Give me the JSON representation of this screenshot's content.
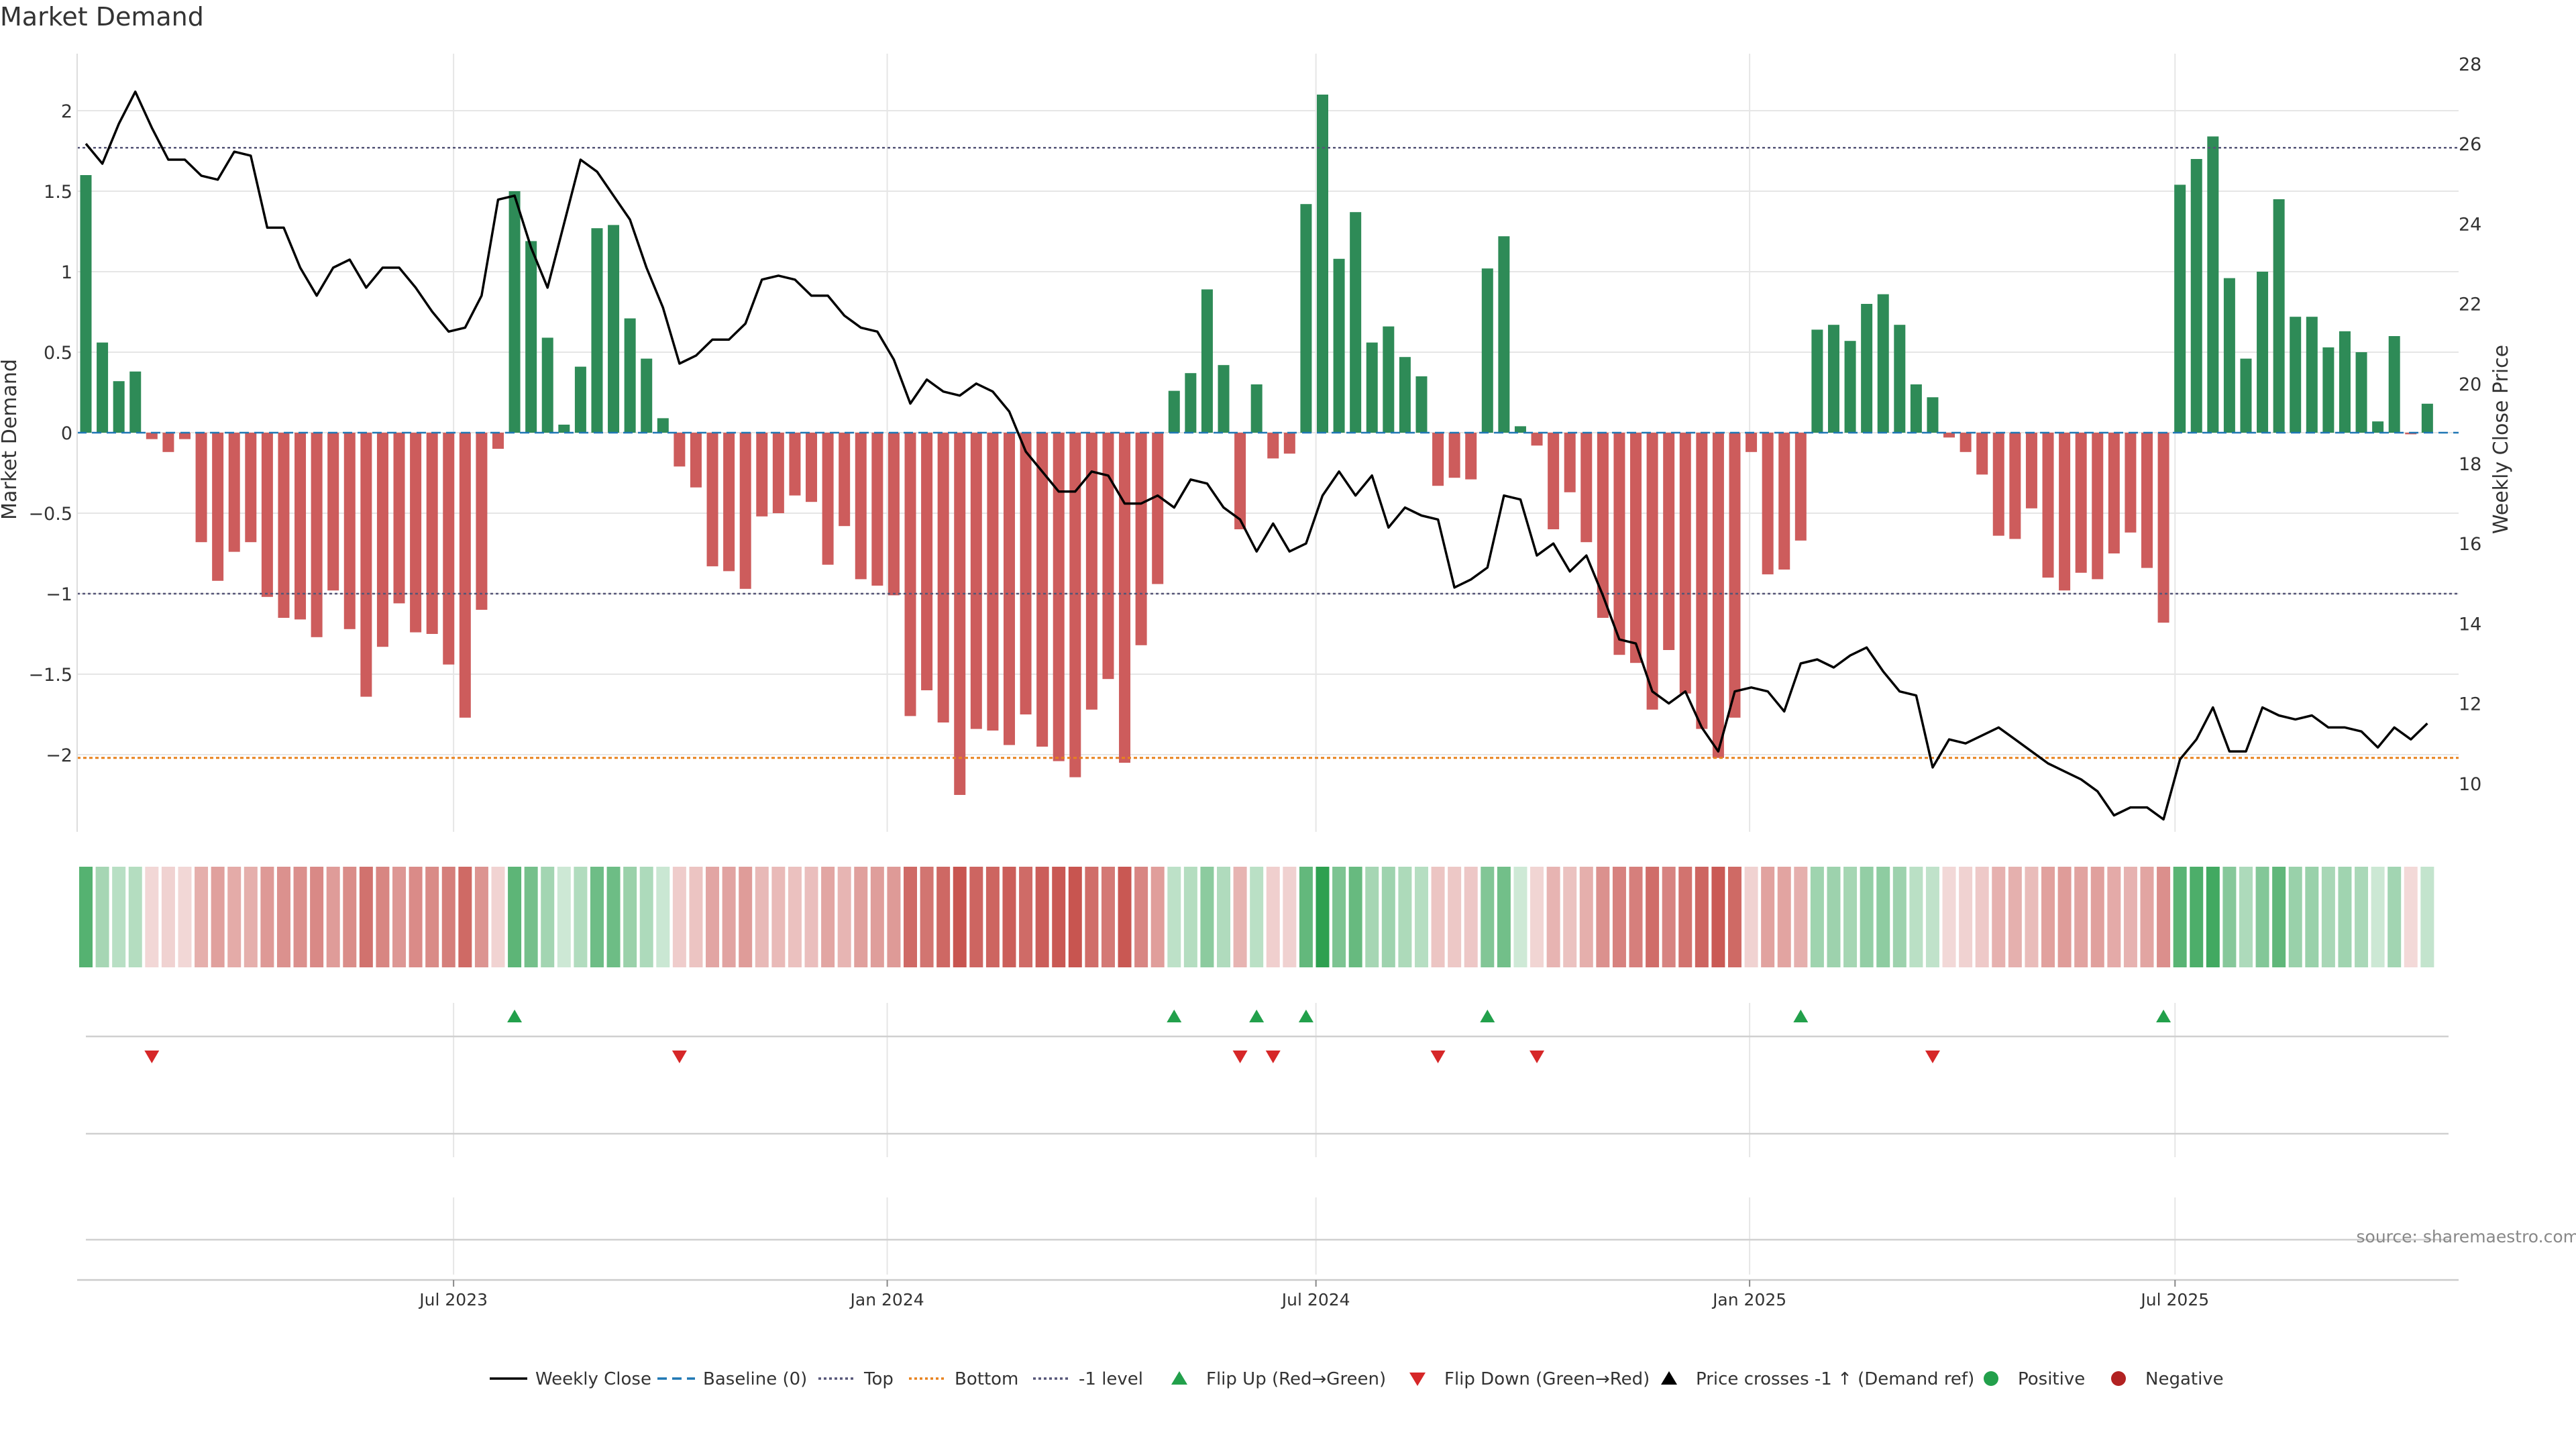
{
  "title": "Market Demand",
  "source": "source: sharemaestro.com",
  "colors": {
    "positive": "#2e8b57",
    "negative": "#cd5c5c",
    "price": "#000000",
    "top_line": "#555577",
    "bottom_line": "#e8821e",
    "baseline": "#1f77b4",
    "flip_up": "#22a04b",
    "flip_down": "#d62728",
    "grid": "#e6e6e6"
  },
  "legend": [
    {
      "label": "Weekly Close",
      "kind": "line-solid",
      "color": "#000000"
    },
    {
      "label": "Baseline (0)",
      "kind": "line-dashed",
      "color": "#1f77b4"
    },
    {
      "label": "Top",
      "kind": "line-dotted",
      "color": "#555577"
    },
    {
      "label": "Bottom",
      "kind": "line-dotted",
      "color": "#e8821e"
    },
    {
      "label": "-1 level",
      "kind": "line-dotted",
      "color": "#555577"
    },
    {
      "label": "Flip Up (Red→Green)",
      "kind": "triangle-up",
      "color": "#22a04b"
    },
    {
      "label": "Flip Down (Green→Red)",
      "kind": "triangle-down",
      "color": "#d62728"
    },
    {
      "label": "Price crosses -1 ↑ (Demand ref)",
      "kind": "triangle-up",
      "color": "#000000"
    },
    {
      "label": "Positive",
      "kind": "dot",
      "color": "#22a04b"
    },
    {
      "label": "Negative",
      "kind": "dot",
      "color": "#b22222"
    }
  ],
  "chart_data": {
    "type": "bar",
    "title": "Market Demand",
    "ylabel": "Market Demand",
    "y2label": "Weekly Close Price",
    "ylim": [
      -2.5,
      2.2
    ],
    "y2lim": [
      8.7,
      28.5
    ],
    "yticks": [
      "2",
      "1.5",
      "1",
      "0.5",
      "0",
      "−0.5",
      "−1",
      "−1.5",
      "−2"
    ],
    "ytick_values": [
      2,
      1.5,
      1,
      0.5,
      0,
      -0.5,
      -1,
      -1.5,
      -2
    ],
    "y2ticks": [
      "28",
      "26",
      "24",
      "22",
      "20",
      "18",
      "16",
      "14",
      "12",
      "10"
    ],
    "y2tick_values": [
      28,
      26,
      24,
      22,
      20,
      18,
      16,
      14,
      12,
      10
    ],
    "x_start": "2023-01-02",
    "x_step_weeks": 1,
    "xticks": [
      {
        "label": "Jul 2023",
        "week": 22.3
      },
      {
        "label": "Jan 2024",
        "week": 48.6
      },
      {
        "label": "Jul 2024",
        "week": 74.6
      },
      {
        "label": "Jan 2025",
        "week": 100.9
      },
      {
        "label": "Jul 2025",
        "week": 126.7
      }
    ],
    "reference_lines": {
      "top": 1.77,
      "minus_one": -1.0,
      "bottom": -2.02,
      "baseline": 0
    },
    "series": [
      {
        "name": "Market Demand",
        "values": [
          1.6,
          0.56,
          0.32,
          0.38,
          -0.04,
          -0.12,
          -0.04,
          -0.68,
          -0.92,
          -0.74,
          -0.68,
          -1.02,
          -1.15,
          -1.16,
          -1.27,
          -0.98,
          -1.22,
          -1.64,
          -1.33,
          -1.06,
          -1.24,
          -1.25,
          -1.44,
          -1.77,
          -1.1,
          -0.1,
          1.5,
          1.19,
          0.59,
          0.05,
          0.41,
          1.27,
          1.29,
          0.71,
          0.46,
          0.09,
          -0.21,
          -0.34,
          -0.83,
          -0.86,
          -0.97,
          -0.52,
          -0.5,
          -0.39,
          -0.43,
          -0.82,
          -0.58,
          -0.91,
          -0.95,
          -1.01,
          -1.76,
          -1.6,
          -1.8,
          -2.25,
          -1.84,
          -1.85,
          -1.94,
          -1.75,
          -1.95,
          -2.04,
          -2.14,
          -1.72,
          -1.53,
          -2.05,
          -1.32,
          -0.94,
          0.26,
          0.37,
          0.89,
          0.42,
          -0.6,
          0.3,
          -0.16,
          -0.13,
          1.42,
          2.1,
          1.08,
          1.37,
          0.56,
          0.66,
          0.47,
          0.35,
          -0.33,
          -0.28,
          -0.29,
          1.02,
          1.22,
          0.04,
          -0.08,
          -0.6,
          -0.37,
          -0.68,
          -1.15,
          -1.38,
          -1.43,
          -1.72,
          -1.35,
          -1.62,
          -1.84,
          -2.02,
          -1.77,
          -0.12,
          -0.88,
          -0.85,
          -0.67,
          0.64,
          0.67,
          0.57,
          0.8,
          0.86,
          0.67,
          0.3,
          0.22,
          -0.03,
          -0.12,
          -0.26,
          -0.64,
          -0.66,
          -0.47,
          -0.9,
          -0.98,
          -0.87,
          -0.91,
          -0.75,
          -0.62,
          -0.84,
          -1.18,
          1.54,
          1.7,
          1.84,
          0.96,
          0.46,
          1.0,
          1.45,
          0.72,
          0.72,
          0.53,
          0.63,
          0.5,
          0.07,
          0.6,
          -0.01,
          0.18
        ]
      },
      {
        "name": "Weekly Close",
        "axis": "right",
        "values": [
          26.0,
          25.5,
          26.5,
          27.3,
          26.4,
          25.6,
          25.6,
          25.2,
          25.1,
          25.8,
          25.7,
          23.9,
          23.9,
          22.9,
          22.2,
          22.9,
          23.1,
          22.4,
          22.9,
          22.9,
          22.4,
          21.8,
          21.3,
          21.4,
          22.2,
          24.6,
          24.7,
          23.4,
          22.4,
          24.0,
          25.6,
          25.3,
          24.7,
          24.1,
          22.9,
          21.9,
          20.5,
          20.7,
          21.1,
          21.1,
          21.5,
          22.6,
          22.7,
          22.6,
          22.2,
          22.2,
          21.7,
          21.4,
          21.3,
          20.6,
          19.5,
          20.1,
          19.8,
          19.7,
          20.0,
          19.8,
          19.3,
          18.3,
          17.8,
          17.3,
          17.3,
          17.8,
          17.7,
          17.0,
          17.0,
          17.2,
          16.9,
          17.6,
          17.5,
          16.9,
          16.6,
          15.8,
          16.5,
          15.8,
          16.0,
          17.2,
          17.8,
          17.2,
          17.7,
          16.4,
          16.9,
          16.7,
          16.6,
          14.9,
          15.1,
          15.4,
          17.2,
          17.1,
          15.7,
          16.0,
          15.3,
          15.7,
          14.7,
          13.6,
          13.5,
          12.3,
          12.0,
          12.3,
          11.4,
          10.8,
          12.3,
          12.4,
          12.3,
          11.8,
          13.0,
          13.1,
          12.9,
          13.2,
          13.4,
          12.8,
          12.3,
          12.2,
          10.4,
          11.1,
          11.0,
          11.2,
          11.4,
          11.1,
          10.8,
          10.5,
          10.3,
          10.1,
          9.8,
          9.2,
          9.4,
          9.4,
          9.1,
          10.6,
          11.1,
          11.9,
          10.8,
          10.8,
          11.9,
          11.7,
          11.6,
          11.7,
          11.4,
          11.4,
          11.3,
          10.9,
          11.4,
          11.1,
          11.5
        ]
      }
    ],
    "flip_up_weeks": [
      26,
      66,
      71,
      74,
      85,
      104,
      126
    ],
    "flip_down_weeks": [
      4,
      36,
      70,
      72,
      82,
      88,
      112
    ],
    "price_cross_weeks": []
  }
}
